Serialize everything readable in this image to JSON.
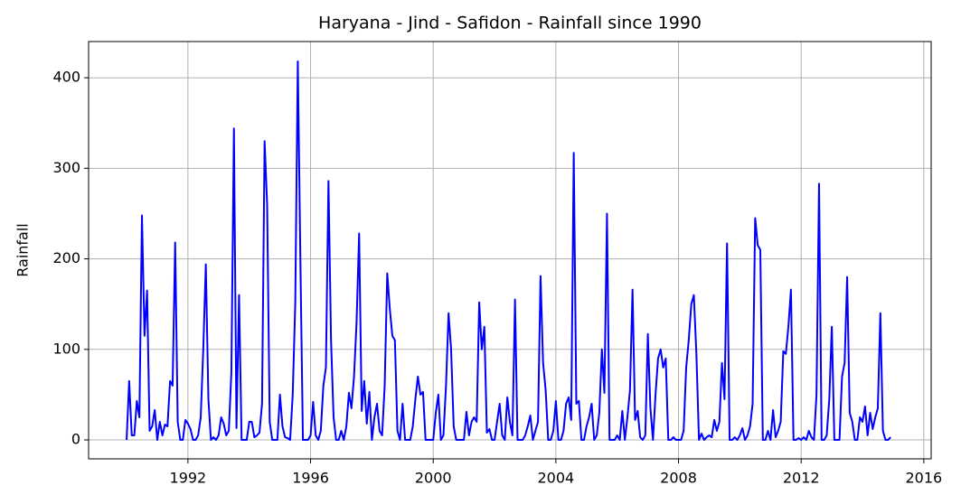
{
  "chart_data": {
    "type": "line",
    "title": "Haryana - Jind - Safidon - Rainfall since 1990",
    "y_label": "Rainfall",
    "color": "#0000ff",
    "grid": true,
    "xlim": [
      1988.76,
      2016.24
    ],
    "xticks": [
      1992,
      1996,
      2000,
      2004,
      2008,
      2012,
      2016
    ],
    "ylim": [
      -20.9,
      440
    ],
    "yticks": [
      0,
      100,
      200,
      300,
      400
    ],
    "x": [
      1990.0,
      1990.083,
      1990.167,
      1990.25,
      1990.333,
      1990.417,
      1990.5,
      1990.583,
      1990.667,
      1990.75,
      1990.833,
      1990.917,
      1991.0,
      1991.083,
      1991.167,
      1991.25,
      1991.333,
      1991.417,
      1991.5,
      1991.583,
      1991.667,
      1991.75,
      1991.833,
      1991.917,
      1992.0,
      1992.083,
      1992.167,
      1992.25,
      1992.333,
      1992.417,
      1992.5,
      1992.583,
      1992.667,
      1992.75,
      1992.833,
      1992.917,
      1993.0,
      1993.083,
      1993.167,
      1993.25,
      1993.333,
      1993.417,
      1993.5,
      1993.583,
      1993.667,
      1993.75,
      1993.833,
      1993.917,
      1994.0,
      1994.083,
      1994.167,
      1994.25,
      1994.333,
      1994.417,
      1994.5,
      1994.583,
      1994.667,
      1994.75,
      1994.833,
      1994.917,
      1995.0,
      1995.083,
      1995.167,
      1995.25,
      1995.333,
      1995.417,
      1995.5,
      1995.583,
      1995.667,
      1995.75,
      1995.833,
      1995.917,
      1996.0,
      1996.083,
      1996.167,
      1996.25,
      1996.333,
      1996.417,
      1996.5,
      1996.583,
      1996.667,
      1996.75,
      1996.833,
      1996.917,
      1997.0,
      1997.083,
      1997.167,
      1997.25,
      1997.333,
      1997.417,
      1997.5,
      1997.583,
      1997.667,
      1997.75,
      1997.833,
      1997.917,
      1998.0,
      1998.083,
      1998.167,
      1998.25,
      1998.333,
      1998.417,
      1998.5,
      1998.583,
      1998.667,
      1998.75,
      1998.833,
      1998.917,
      1999.0,
      1999.083,
      1999.167,
      1999.25,
      1999.333,
      1999.417,
      1999.5,
      1999.583,
      1999.667,
      1999.75,
      1999.833,
      1999.917,
      2000.0,
      2000.083,
      2000.167,
      2000.25,
      2000.333,
      2000.417,
      2000.5,
      2000.583,
      2000.667,
      2000.75,
      2000.833,
      2000.917,
      2001.0,
      2001.083,
      2001.167,
      2001.25,
      2001.333,
      2001.417,
      2001.5,
      2001.583,
      2001.667,
      2001.75,
      2001.833,
      2001.917,
      2002.0,
      2002.083,
      2002.167,
      2002.25,
      2002.333,
      2002.417,
      2002.5,
      2002.583,
      2002.667,
      2002.75,
      2002.833,
      2002.917,
      2003.0,
      2003.083,
      2003.167,
      2003.25,
      2003.333,
      2003.417,
      2003.5,
      2003.583,
      2003.667,
      2003.75,
      2003.833,
      2003.917,
      2004.0,
      2004.083,
      2004.167,
      2004.25,
      2004.333,
      2004.417,
      2004.5,
      2004.583,
      2004.667,
      2004.75,
      2004.833,
      2004.917,
      2005.0,
      2005.083,
      2005.167,
      2005.25,
      2005.333,
      2005.417,
      2005.5,
      2005.583,
      2005.667,
      2005.75,
      2005.833,
      2005.917,
      2006.0,
      2006.083,
      2006.167,
      2006.25,
      2006.333,
      2006.417,
      2006.5,
      2006.583,
      2006.667,
      2006.75,
      2006.833,
      2006.917,
      2007.0,
      2007.083,
      2007.167,
      2007.25,
      2007.333,
      2007.417,
      2007.5,
      2007.583,
      2007.667,
      2007.75,
      2007.833,
      2007.917,
      2008.0,
      2008.083,
      2008.167,
      2008.25,
      2008.333,
      2008.417,
      2008.5,
      2008.583,
      2008.667,
      2008.75,
      2008.833,
      2008.917,
      2009.0,
      2009.083,
      2009.167,
      2009.25,
      2009.333,
      2009.417,
      2009.5,
      2009.583,
      2009.667,
      2009.75,
      2009.833,
      2009.917,
      2010.0,
      2010.083,
      2010.167,
      2010.25,
      2010.333,
      2010.417,
      2010.5,
      2010.583,
      2010.667,
      2010.75,
      2010.833,
      2010.917,
      2011.0,
      2011.083,
      2011.167,
      2011.25,
      2011.333,
      2011.417,
      2011.5,
      2011.583,
      2011.667,
      2011.75,
      2011.833,
      2011.917,
      2012.0,
      2012.083,
      2012.167,
      2012.25,
      2012.333,
      2012.417,
      2012.5,
      2012.583,
      2012.667,
      2012.75,
      2012.833,
      2012.917,
      2013.0,
      2013.083,
      2013.167,
      2013.25,
      2013.333,
      2013.417,
      2013.5,
      2013.583,
      2013.667,
      2013.75,
      2013.833,
      2013.917,
      2014.0,
      2014.083,
      2014.167,
      2014.25,
      2014.333,
      2014.417,
      2014.5,
      2014.583,
      2014.667,
      2014.75,
      2014.833,
      2014.917
    ],
    "values": [
      0,
      65,
      5,
      5,
      43,
      25,
      248,
      115,
      165,
      10,
      15,
      33,
      0,
      20,
      5,
      17,
      15,
      65,
      60,
      218,
      20,
      0,
      0,
      22,
      18,
      12,
      0,
      0,
      5,
      25,
      100,
      194,
      45,
      0,
      3,
      0,
      5,
      25,
      18,
      5,
      10,
      75,
      344,
      13,
      160,
      0,
      0,
      0,
      20,
      20,
      3,
      5,
      8,
      40,
      330,
      260,
      20,
      0,
      0,
      0,
      50,
      15,
      3,
      2,
      0,
      50,
      150,
      418,
      200,
      0,
      0,
      0,
      5,
      42,
      5,
      0,
      10,
      60,
      80,
      286,
      110,
      25,
      0,
      0,
      10,
      0,
      15,
      52,
      35,
      70,
      130,
      228,
      32,
      65,
      18,
      53,
      0,
      25,
      40,
      10,
      5,
      60,
      184,
      145,
      115,
      110,
      10,
      0,
      40,
      0,
      0,
      0,
      15,
      45,
      70,
      50,
      53,
      0,
      0,
      0,
      0,
      30,
      50,
      0,
      5,
      60,
      140,
      100,
      15,
      0,
      0,
      0,
      0,
      31,
      5,
      20,
      25,
      20,
      152,
      100,
      125,
      8,
      12,
      0,
      0,
      20,
      40,
      5,
      0,
      47,
      20,
      5,
      155,
      0,
      0,
      0,
      5,
      15,
      27,
      0,
      10,
      20,
      181,
      85,
      55,
      0,
      0,
      10,
      43,
      0,
      0,
      10,
      40,
      47,
      22,
      317,
      40,
      43,
      0,
      0,
      15,
      25,
      40,
      0,
      5,
      30,
      100,
      52,
      250,
      0,
      0,
      0,
      5,
      0,
      32,
      0,
      25,
      55,
      166,
      22,
      32,
      3,
      0,
      5,
      117,
      35,
      0,
      50,
      90,
      100,
      80,
      90,
      0,
      0,
      3,
      0,
      0,
      0,
      10,
      80,
      110,
      150,
      160,
      95,
      0,
      7,
      0,
      3,
      5,
      3,
      22,
      10,
      20,
      85,
      45,
      217,
      0,
      0,
      3,
      0,
      5,
      13,
      0,
      5,
      15,
      40,
      245,
      215,
      210,
      0,
      0,
      10,
      0,
      33,
      3,
      10,
      20,
      98,
      95,
      125,
      166,
      0,
      0,
      2,
      0,
      3,
      0,
      10,
      3,
      0,
      50,
      283,
      0,
      0,
      5,
      45,
      125,
      0,
      0,
      0,
      70,
      85,
      180,
      30,
      20,
      0,
      0,
      25,
      20,
      37,
      5,
      30,
      12,
      25,
      35,
      140,
      10,
      0,
      0,
      3
    ]
  }
}
